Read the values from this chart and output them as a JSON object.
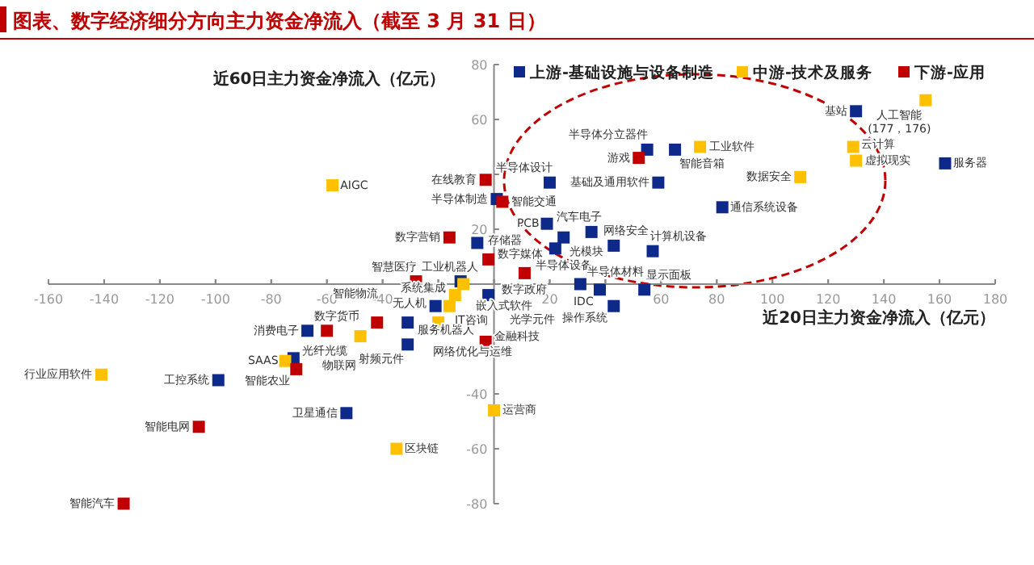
{
  "chart_data": {
    "type": "scatter",
    "title": "图表、数字经济细分方向主力资金净流入（截至 3 月 31 日）",
    "xlabel": "近20日主力资金净流入（亿元）",
    "ylabel": "近60日主力资金净流入（亿元）",
    "xlim": [
      -160,
      180
    ],
    "xticks": [
      -160,
      -140,
      -120,
      -100,
      -80,
      -60,
      -40,
      {
        "value": -20,
        "label": null
      },
      {
        "value": 0,
        "label": null
      },
      20,
      {
        "value": 40,
        "label": null
      },
      60,
      80,
      100,
      120,
      140,
      160,
      180
    ],
    "ylim": [
      -80,
      80
    ],
    "yticks": [
      -80,
      -60,
      -40,
      {
        "value": -20,
        "label": null
      },
      {
        "value": 0,
        "label": null
      },
      20,
      {
        "value": 40,
        "label": null
      },
      60,
      80
    ],
    "legend": "top right",
    "marker": "square",
    "grid": false,
    "series": [
      {
        "name": "上游-基础设施与设备制造",
        "color": "#0d2a8a",
        "x": [
          130,
          162,
          65,
          55,
          59,
          82,
          57,
          43,
          20,
          1,
          19,
          25,
          22,
          35,
          -6,
          31,
          38,
          54,
          43,
          -2,
          -21,
          -31,
          -31,
          -12,
          -67,
          -72,
          -99,
          -53
        ],
        "values": [
          63,
          44,
          49,
          49,
          37,
          28,
          12,
          14,
          37,
          31,
          22,
          17,
          13,
          19,
          15,
          0,
          -2,
          -2,
          -8,
          -4,
          -8,
          -14,
          -22,
          1,
          -17,
          -27,
          -35,
          -47
        ],
        "value_labels": [
          "基站",
          "服务器",
          "智能音箱",
          "半导体分立器件",
          "基础及通用软件",
          "通信系统设备",
          "计算机设备",
          "网络安全",
          "半导体设计",
          "半导体制造",
          "PCB",
          "光模块",
          "半导体设备",
          "汽车电子",
          "存储器",
          "半导体材料",
          "IDC",
          "显示面板",
          "操作系统",
          "光学元件",
          "无人机",
          "服务机器人",
          "射频元件",
          "工业机器人",
          "消费电子",
          "光纤光缆",
          "工控系统",
          "卫星通信"
        ]
      },
      {
        "name": "中游-技术及服务",
        "color": "#ffc000",
        "x": [
          -58,
          155,
          74,
          129,
          130,
          110,
          -11,
          -14,
          -16,
          -20,
          -48,
          -141,
          0,
          -35,
          -75
        ],
        "values": [
          36,
          67,
          50,
          50,
          45,
          39,
          0,
          -4,
          -8,
          -14,
          -19,
          -33,
          -46,
          -60,
          -28
        ],
        "value_labels": [
          "AIGC",
          "人工智能\n(177，176)",
          "工业软件",
          "云计算",
          "虚拟现实",
          "数据安全",
          "嵌入式软件",
          "系统集成",
          "IT咨询",
          "网络优化与运维",
          "物联网",
          "行业应用软件",
          "运营商",
          "区块链",
          "SAAS"
        ]
      },
      {
        "name": "下游-应用",
        "color": "#c00000",
        "x": [
          -3,
          3,
          52,
          -16,
          -2,
          11,
          -28,
          -60,
          -42,
          -3,
          -71,
          -106,
          -133
        ],
        "values": [
          38,
          30,
          46,
          17,
          9,
          4,
          1,
          -17,
          -14,
          -21,
          -31,
          -52,
          -80
        ],
        "value_labels": [
          "在线教育",
          "智能交通",
          "游戏",
          "数字营销",
          "数字媒体",
          "数字政府",
          "智慧医疗",
          "数字货币",
          "智能物流",
          "金融科技",
          "智能农业",
          "智能电网",
          "智能汽车"
        ]
      }
    ]
  }
}
